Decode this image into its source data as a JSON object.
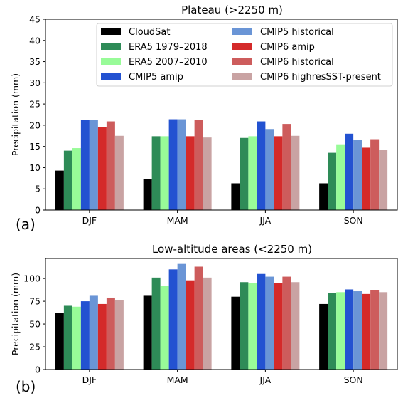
{
  "colors": {
    "CloudSat": "#000000",
    "ERA5 1979–2018": "#2e8b57",
    "ERA5 2007–2010": "#98fb98",
    "CMIP5 amip": "#2352d1",
    "CMIP5 historical": "#6a95d6",
    "CMIP6 amip": "#d42a2a",
    "CMIP6 historical": "#cd5c5c",
    "CMIP6 highresSST-present": "#c9a3a3"
  },
  "chart_data": [
    {
      "type": "bar",
      "panel_label": "(a)",
      "title": "Plateau (>2250 m)",
      "xlabel": "",
      "ylabel": "Precipitation (mm)",
      "ylim": [
        0,
        45
      ],
      "yticks": [
        0,
        5,
        10,
        15,
        20,
        25,
        30,
        35,
        40,
        45
      ],
      "categories": [
        "DJF",
        "MAM",
        "JJA",
        "SON"
      ],
      "legend": "top-right",
      "series": [
        {
          "name": "CloudSat",
          "values": [
            9.3,
            7.3,
            6.3,
            6.3
          ]
        },
        {
          "name": "ERA5 1979–2018",
          "values": [
            14.0,
            17.4,
            17.0,
            13.5
          ]
        },
        {
          "name": "ERA5 2007–2010",
          "values": [
            14.6,
            17.4,
            17.4,
            15.5
          ]
        },
        {
          "name": "CMIP5 amip",
          "values": [
            21.2,
            21.4,
            20.9,
            18.0
          ]
        },
        {
          "name": "CMIP5 historical",
          "values": [
            21.2,
            21.4,
            19.1,
            16.5
          ]
        },
        {
          "name": "CMIP6 amip",
          "values": [
            19.5,
            17.4,
            17.4,
            14.7
          ]
        },
        {
          "name": "CMIP6 historical",
          "values": [
            20.9,
            21.2,
            20.3,
            16.7
          ]
        },
        {
          "name": "CMIP6 highresSST-present",
          "values": [
            17.5,
            17.1,
            17.5,
            14.2
          ]
        }
      ]
    },
    {
      "type": "bar",
      "panel_label": "(b)",
      "title": "Low-altitude areas (<2250 m)",
      "xlabel": "",
      "ylabel": "Precipitation (mm)",
      "ylim": [
        0,
        122
      ],
      "yticks": [
        0,
        25,
        50,
        75,
        100
      ],
      "categories": [
        "DJF",
        "MAM",
        "JJA",
        "SON"
      ],
      "legend": "none",
      "series": [
        {
          "name": "CloudSat",
          "values": [
            62,
            81,
            80,
            72
          ]
        },
        {
          "name": "ERA5 1979–2018",
          "values": [
            70,
            101,
            96,
            84
          ]
        },
        {
          "name": "ERA5 2007–2010",
          "values": [
            69,
            92,
            95,
            85
          ]
        },
        {
          "name": "CMIP5 amip",
          "values": [
            75,
            110,
            105,
            88
          ]
        },
        {
          "name": "CMIP5 historical",
          "values": [
            81,
            116,
            102,
            86
          ]
        },
        {
          "name": "CMIP6 amip",
          "values": [
            72,
            98,
            95,
            83
          ]
        },
        {
          "name": "CMIP6 historical",
          "values": [
            79,
            113,
            102,
            87
          ]
        },
        {
          "name": "CMIP6 highresSST-present",
          "values": [
            76,
            101,
            96,
            85
          ]
        }
      ]
    }
  ]
}
